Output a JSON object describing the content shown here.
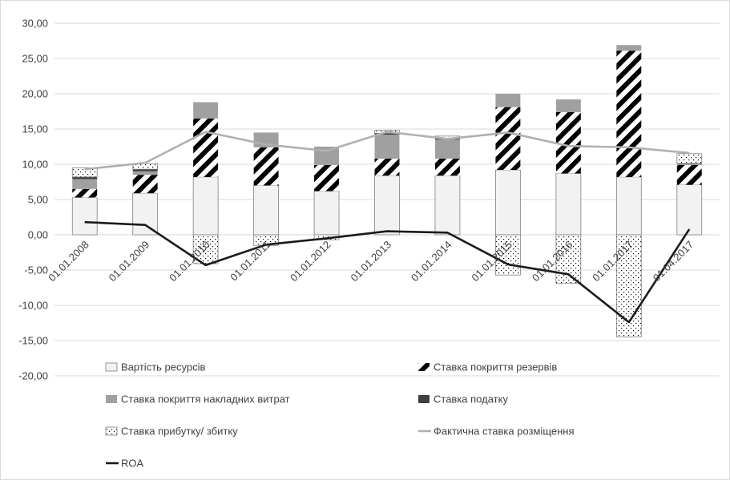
{
  "chart_data": {
    "type": "bar",
    "stacked": true,
    "categories": [
      "01.01.2008",
      "01.01.2009",
      "01.01.2010",
      "01.01.2011",
      "01.01.2012",
      "01.01.2013",
      "01.01.2014",
      "01.01.2015",
      "01.01.2016",
      "01.01.2017",
      "01.04.2017"
    ],
    "ylim": [
      -20,
      30
    ],
    "yticks": [
      "30,00",
      "25,00",
      "20,00",
      "15,00",
      "10,00",
      "5,00",
      "0,00",
      "-5,00",
      "-10,00",
      "-15,00",
      "-20,00"
    ],
    "grid": true,
    "legend_position": "bottom",
    "series": [
      {
        "name": "Вартість ресурсів",
        "kind": "bar",
        "pattern": "light",
        "values": [
          5.3,
          5.9,
          8.2,
          7.0,
          6.2,
          8.4,
          8.4,
          9.2,
          8.7,
          8.2,
          7.1
        ]
      },
      {
        "name": "Ставка покриття резервів",
        "kind": "bar",
        "pattern": "stripes",
        "values": [
          1.2,
          2.6,
          8.3,
          5.4,
          3.7,
          2.4,
          2.4,
          8.9,
          8.7,
          17.9,
          2.8
        ]
      },
      {
        "name": "Ставка покриття накладних витрат",
        "kind": "bar",
        "pattern": "gray",
        "values": [
          1.4,
          0.5,
          2.3,
          2.1,
          2.6,
          3.4,
          2.7,
          1.9,
          1.8,
          0.8,
          0.1
        ]
      },
      {
        "name": "Ставка податку",
        "kind": "bar",
        "pattern": "dark",
        "values": [
          0.3,
          0.3,
          0.0,
          0.0,
          0.0,
          0.2,
          0.2,
          0.0,
          0.0,
          0.0,
          0.1
        ]
      },
      {
        "name": "Ставка прибутку/ збитку",
        "kind": "bar",
        "pattern": "dots",
        "values": [
          1.3,
          0.8,
          -4.1,
          -1.5,
          -0.7,
          0.4,
          0.3,
          -5.7,
          -6.9,
          -14.5,
          1.4
        ]
      },
      {
        "name": "Фактична ставка розміщення",
        "kind": "line",
        "color": "#b0b0b0",
        "values": [
          9.3,
          10.2,
          14.6,
          12.8,
          11.9,
          14.6,
          13.6,
          14.5,
          12.6,
          12.4,
          11.6
        ]
      },
      {
        "name": "ROA",
        "kind": "line",
        "color": "#1a1a1a",
        "values": [
          1.8,
          1.4,
          -4.3,
          -1.4,
          -0.5,
          0.5,
          0.3,
          -4.2,
          -5.6,
          -12.4,
          0.8
        ]
      }
    ]
  }
}
